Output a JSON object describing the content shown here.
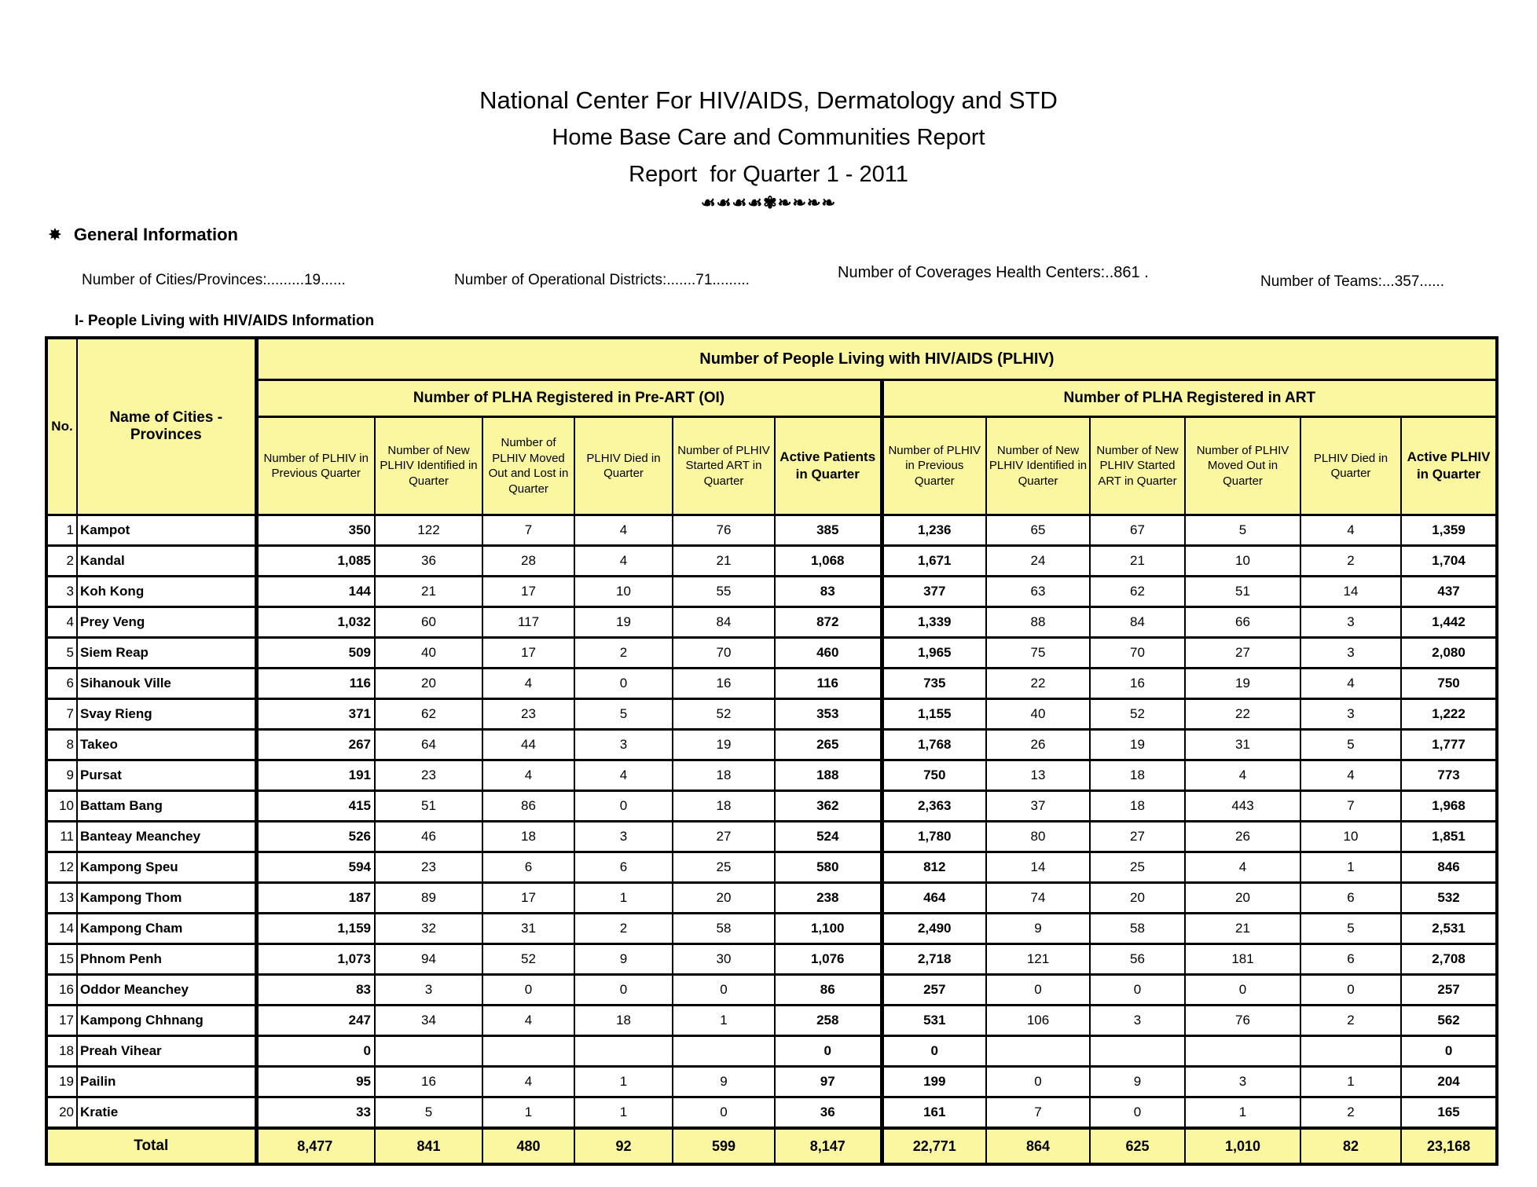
{
  "header": {
    "title1": "National Center For HIV/AIDS, Dermatology and STD",
    "title2": "Home Base Care and Communities Report",
    "title3": "Report  for Quarter 1 - 2011",
    "ornament": "☙☙☙☙✾❧❧❧❧"
  },
  "general_info": {
    "bullet": "✸",
    "heading": "General Information",
    "items": [
      "Number of Cities/Provinces:.........19......",
      "Number of Operational Districts:.......71.........",
      "Number of Coverages Health Centers:..861 .",
      "Number of Teams:...357......"
    ]
  },
  "section": {
    "heading": "I- People Living with HIV/AIDS Information"
  },
  "table": {
    "corner": {
      "no": "No.",
      "name": "Name of Cities - Provinces"
    },
    "group_header": "Number of People Living with HIV/AIDS (PLHIV)",
    "subgroups": [
      {
        "label": "Number of PLHA Registered in Pre-ART (OI)",
        "columns": [
          "Number of PLHIV in Previous Quarter",
          "Number of New PLHIV Identified in Quarter",
          "Number of PLHIV Moved Out and Lost in Quarter",
          "PLHIV Died in Quarter",
          "Number of PLHIV Started ART in Quarter",
          "Active Patients in Quarter"
        ]
      },
      {
        "label": "Number of PLHA Registered in ART",
        "columns": [
          "Number of PLHIV in Previous Quarter",
          "Number of New PLHIV Identified in Quarter",
          "Number of New PLHIV Started ART in Quarter",
          "Number of PLHIV Moved Out in Quarter",
          "PLHIV Died in Quarter",
          "Active PLHIV in Quarter"
        ]
      }
    ],
    "rows": [
      {
        "no": "1",
        "name": "Kampot",
        "values": [
          "350",
          "122",
          "7",
          "4",
          "76",
          "385",
          "1,236",
          "65",
          "67",
          "5",
          "4",
          "1,359"
        ]
      },
      {
        "no": "2",
        "name": "Kandal",
        "values": [
          "1,085",
          "36",
          "28",
          "4",
          "21",
          "1,068",
          "1,671",
          "24",
          "21",
          "10",
          "2",
          "1,704"
        ]
      },
      {
        "no": "3",
        "name": "Koh Kong",
        "values": [
          "144",
          "21",
          "17",
          "10",
          "55",
          "83",
          "377",
          "63",
          "62",
          "51",
          "14",
          "437"
        ]
      },
      {
        "no": "4",
        "name": "Prey Veng",
        "values": [
          "1,032",
          "60",
          "117",
          "19",
          "84",
          "872",
          "1,339",
          "88",
          "84",
          "66",
          "3",
          "1,442"
        ]
      },
      {
        "no": "5",
        "name": "Siem Reap",
        "values": [
          "509",
          "40",
          "17",
          "2",
          "70",
          "460",
          "1,965",
          "75",
          "70",
          "27",
          "3",
          "2,080"
        ]
      },
      {
        "no": "6",
        "name": "Sihanouk Ville",
        "values": [
          "116",
          "20",
          "4",
          "0",
          "16",
          "116",
          "735",
          "22",
          "16",
          "19",
          "4",
          "750"
        ]
      },
      {
        "no": "7",
        "name": "Svay Rieng",
        "values": [
          "371",
          "62",
          "23",
          "5",
          "52",
          "353",
          "1,155",
          "40",
          "52",
          "22",
          "3",
          "1,222"
        ]
      },
      {
        "no": "8",
        "name": "Takeo",
        "values": [
          "267",
          "64",
          "44",
          "3",
          "19",
          "265",
          "1,768",
          "26",
          "19",
          "31",
          "5",
          "1,777"
        ]
      },
      {
        "no": "9",
        "name": "Pursat",
        "values": [
          "191",
          "23",
          "4",
          "4",
          "18",
          "188",
          "750",
          "13",
          "18",
          "4",
          "4",
          "773"
        ]
      },
      {
        "no": "10",
        "name": "Battam Bang",
        "values": [
          "415",
          "51",
          "86",
          "0",
          "18",
          "362",
          "2,363",
          "37",
          "18",
          "443",
          "7",
          "1,968"
        ]
      },
      {
        "no": "11",
        "name": "Banteay Meanchey",
        "values": [
          "526",
          "46",
          "18",
          "3",
          "27",
          "524",
          "1,780",
          "80",
          "27",
          "26",
          "10",
          "1,851"
        ]
      },
      {
        "no": "12",
        "name": "Kampong Speu",
        "values": [
          "594",
          "23",
          "6",
          "6",
          "25",
          "580",
          "812",
          "14",
          "25",
          "4",
          "1",
          "846"
        ]
      },
      {
        "no": "13",
        "name": "Kampong Thom",
        "values": [
          "187",
          "89",
          "17",
          "1",
          "20",
          "238",
          "464",
          "74",
          "20",
          "20",
          "6",
          "532"
        ]
      },
      {
        "no": "14",
        "name": "Kampong Cham",
        "values": [
          "1,159",
          "32",
          "31",
          "2",
          "58",
          "1,100",
          "2,490",
          "9",
          "58",
          "21",
          "5",
          "2,531"
        ]
      },
      {
        "no": "15",
        "name": "Phnom Penh",
        "values": [
          "1,073",
          "94",
          "52",
          "9",
          "30",
          "1,076",
          "2,718",
          "121",
          "56",
          "181",
          "6",
          "2,708"
        ]
      },
      {
        "no": "16",
        "name": "Oddor Meanchey",
        "values": [
          "83",
          "3",
          "0",
          "0",
          "0",
          "86",
          "257",
          "0",
          "0",
          "0",
          "0",
          "257"
        ]
      },
      {
        "no": "17",
        "name": "Kampong Chhnang",
        "values": [
          "247",
          "34",
          "4",
          "18",
          "1",
          "258",
          "531",
          "106",
          "3",
          "76",
          "2",
          "562"
        ]
      },
      {
        "no": "18",
        "name": "Preah Vihear",
        "values": [
          "0",
          "",
          "",
          "",
          "",
          "0",
          "0",
          "",
          "",
          "",
          "",
          "0"
        ]
      },
      {
        "no": "19",
        "name": "Pailin",
        "values": [
          "95",
          "16",
          "4",
          "1",
          "9",
          "97",
          "199",
          "0",
          "9",
          "3",
          "1",
          "204"
        ]
      },
      {
        "no": "20",
        "name": "Kratie",
        "values": [
          "33",
          "5",
          "1",
          "1",
          "0",
          "36",
          "161",
          "7",
          "0",
          "1",
          "2",
          "165"
        ]
      }
    ],
    "total": {
      "label": "Total",
      "values": [
        "8,477",
        "841",
        "480",
        "92",
        "599",
        "8,147",
        "22,771",
        "864",
        "625",
        "1,010",
        "82",
        "23,168"
      ]
    }
  },
  "colors": {
    "header_yellow": "#faf7a0",
    "border_black": "#000000"
  }
}
